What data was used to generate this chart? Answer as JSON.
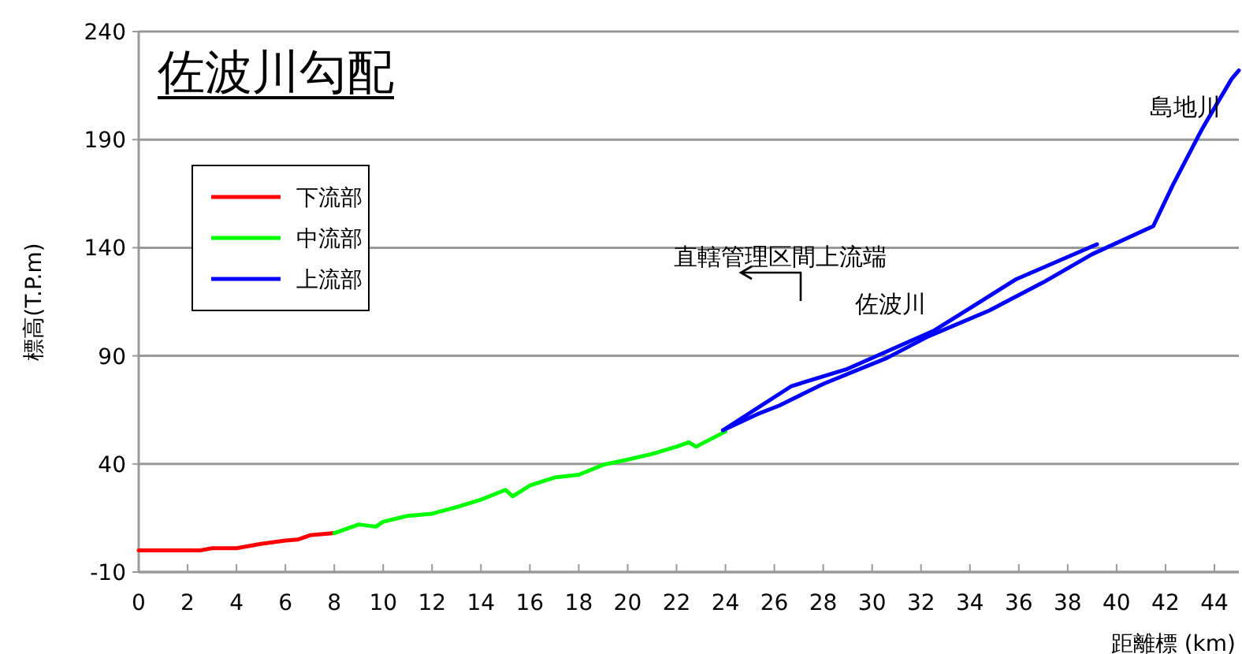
{
  "chart_data": {
    "type": "line",
    "title": "佐波川勾配",
    "xlabel": "距離標 (km)",
    "ylabel": "標高(T.P.m)",
    "xlim": [
      0,
      45
    ],
    "xticks": [
      0,
      2,
      4,
      6,
      8,
      10,
      12,
      14,
      16,
      18,
      20,
      22,
      24,
      26,
      28,
      30,
      32,
      34,
      36,
      38,
      40,
      42,
      44
    ],
    "ylim": [
      -10,
      240
    ],
    "yticks": [
      -10,
      40,
      90,
      140,
      190,
      240
    ],
    "grid": "y",
    "legend": "top left",
    "line_style": "solid",
    "marker": "none",
    "series": [
      {
        "name": "下流部",
        "color": "#ff0000",
        "x": [
          0,
          1,
          2,
          2.5,
          3,
          4,
          5,
          6,
          6.5,
          7,
          8
        ],
        "values": [
          0,
          0,
          0,
          0,
          1,
          1,
          3,
          4.6,
          5,
          7,
          8
        ]
      },
      {
        "name": "中流部",
        "color": "#00ff00",
        "x": [
          8,
          9,
          9.7,
          10,
          11,
          12,
          13,
          14,
          15,
          15.3,
          16,
          17,
          18,
          19,
          20,
          21,
          22,
          22.5,
          22.8,
          24
        ],
        "values": [
          8,
          12,
          11,
          13.3,
          16,
          17,
          20,
          23.5,
          28,
          25,
          30,
          33.7,
          35,
          39.6,
          42,
          44.6,
          48,
          50,
          48,
          55
        ]
      },
      {
        "name": "上流部",
        "color": "#0000ff",
        "x": [
          23.9,
          25.3,
          26.2,
          28,
          30.6,
          32.3,
          34.8,
          37,
          39,
          41.5,
          42.3,
          43.5,
          44.7,
          45
        ],
        "values": [
          55.6,
          63,
          67,
          77,
          89,
          99,
          111,
          124,
          137,
          150,
          169,
          195,
          218,
          222
        ]
      },
      {
        "color": "#0000ff",
        "x": [
          23.9,
          26.7,
          29,
          32.5,
          34,
          35.9,
          39.2
        ],
        "values": [
          55.6,
          76,
          84,
          101.5,
          112,
          125.5,
          141.6
        ]
      }
    ],
    "annotations": [
      "直轄管理区間上流端",
      "佐波川",
      "島地川"
    ]
  }
}
